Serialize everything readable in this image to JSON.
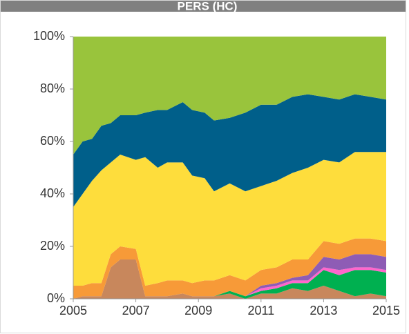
{
  "chart_data": {
    "type": "stacked_area",
    "title": "PERS (HC)",
    "x": [
      2005,
      2005.3,
      2005.6,
      2005.9,
      2006.2,
      2006.5,
      2007,
      2007.3,
      2007.7,
      2008,
      2008.5,
      2008.8,
      2009.2,
      2009.5,
      2010,
      2010.5,
      2011,
      2011.5,
      2012,
      2012.5,
      2013,
      2013.5,
      2014,
      2014.5,
      2015
    ],
    "series": [
      {
        "color": "#c8875c",
        "values": [
          0,
          1,
          1,
          1,
          12,
          15,
          15,
          1,
          1,
          1,
          2,
          1,
          1,
          1,
          2,
          0,
          2,
          2,
          4,
          3,
          5,
          3,
          1,
          2,
          1
        ]
      },
      {
        "color": "#00b050",
        "values": [
          0,
          0,
          0,
          0,
          0,
          0,
          0,
          0,
          0,
          0,
          0,
          0,
          0,
          0,
          1,
          1,
          1,
          2,
          2,
          3,
          6,
          6,
          10,
          9,
          9
        ]
      },
      {
        "color": "#ff66cc",
        "values": [
          0,
          0,
          0,
          0,
          0,
          0,
          0,
          0,
          0,
          0,
          0,
          0,
          0,
          0,
          0,
          0,
          1,
          1,
          1,
          1,
          1,
          2,
          1,
          1,
          1
        ]
      },
      {
        "color": "#8e5cb5",
        "values": [
          0,
          0,
          0,
          0,
          0,
          0,
          0,
          0,
          0,
          0,
          0,
          0,
          0,
          0,
          0,
          0,
          1,
          1,
          1,
          2,
          4,
          4,
          5,
          5,
          5
        ]
      },
      {
        "color": "#f79a38",
        "values": [
          5,
          4,
          5,
          5,
          5,
          5,
          4,
          4,
          5,
          6,
          5,
          5,
          6,
          6,
          6,
          6,
          6,
          6,
          7,
          6,
          6,
          6,
          6,
          6,
          6
        ]
      },
      {
        "color": "#fedd3c",
        "values": [
          30,
          35,
          39,
          43,
          35,
          35,
          34,
          49,
          44,
          45,
          45,
          41,
          39,
          34,
          35,
          34,
          32,
          33,
          33,
          35,
          31,
          31,
          33,
          33,
          34
        ]
      },
      {
        "color": "#005f8a",
        "values": [
          20,
          20,
          16,
          17,
          15,
          15,
          17,
          17,
          22,
          20,
          23,
          25,
          25,
          27,
          25,
          30,
          31,
          29,
          29,
          28,
          24,
          24,
          22,
          21,
          20
        ]
      },
      {
        "color": "#99c43c",
        "values": [
          45,
          40,
          39,
          34,
          33,
          30,
          30,
          29,
          28,
          28,
          25,
          28,
          29,
          32,
          31,
          29,
          26,
          26,
          23,
          22,
          23,
          24,
          22,
          23,
          24
        ]
      }
    ],
    "xlim": [
      2005,
      2015
    ],
    "xticks": [
      2005,
      2007,
      2009,
      2011,
      2013,
      2015
    ],
    "ylim": [
      0,
      100
    ],
    "yticks": [
      {
        "value": 0,
        "label": "0%"
      },
      {
        "value": 20,
        "label": "20%"
      },
      {
        "value": 40,
        "label": "40%"
      },
      {
        "value": 60,
        "label": "60%"
      },
      {
        "value": 80,
        "label": "80%"
      },
      {
        "value": 100,
        "label": "100%"
      }
    ]
  }
}
